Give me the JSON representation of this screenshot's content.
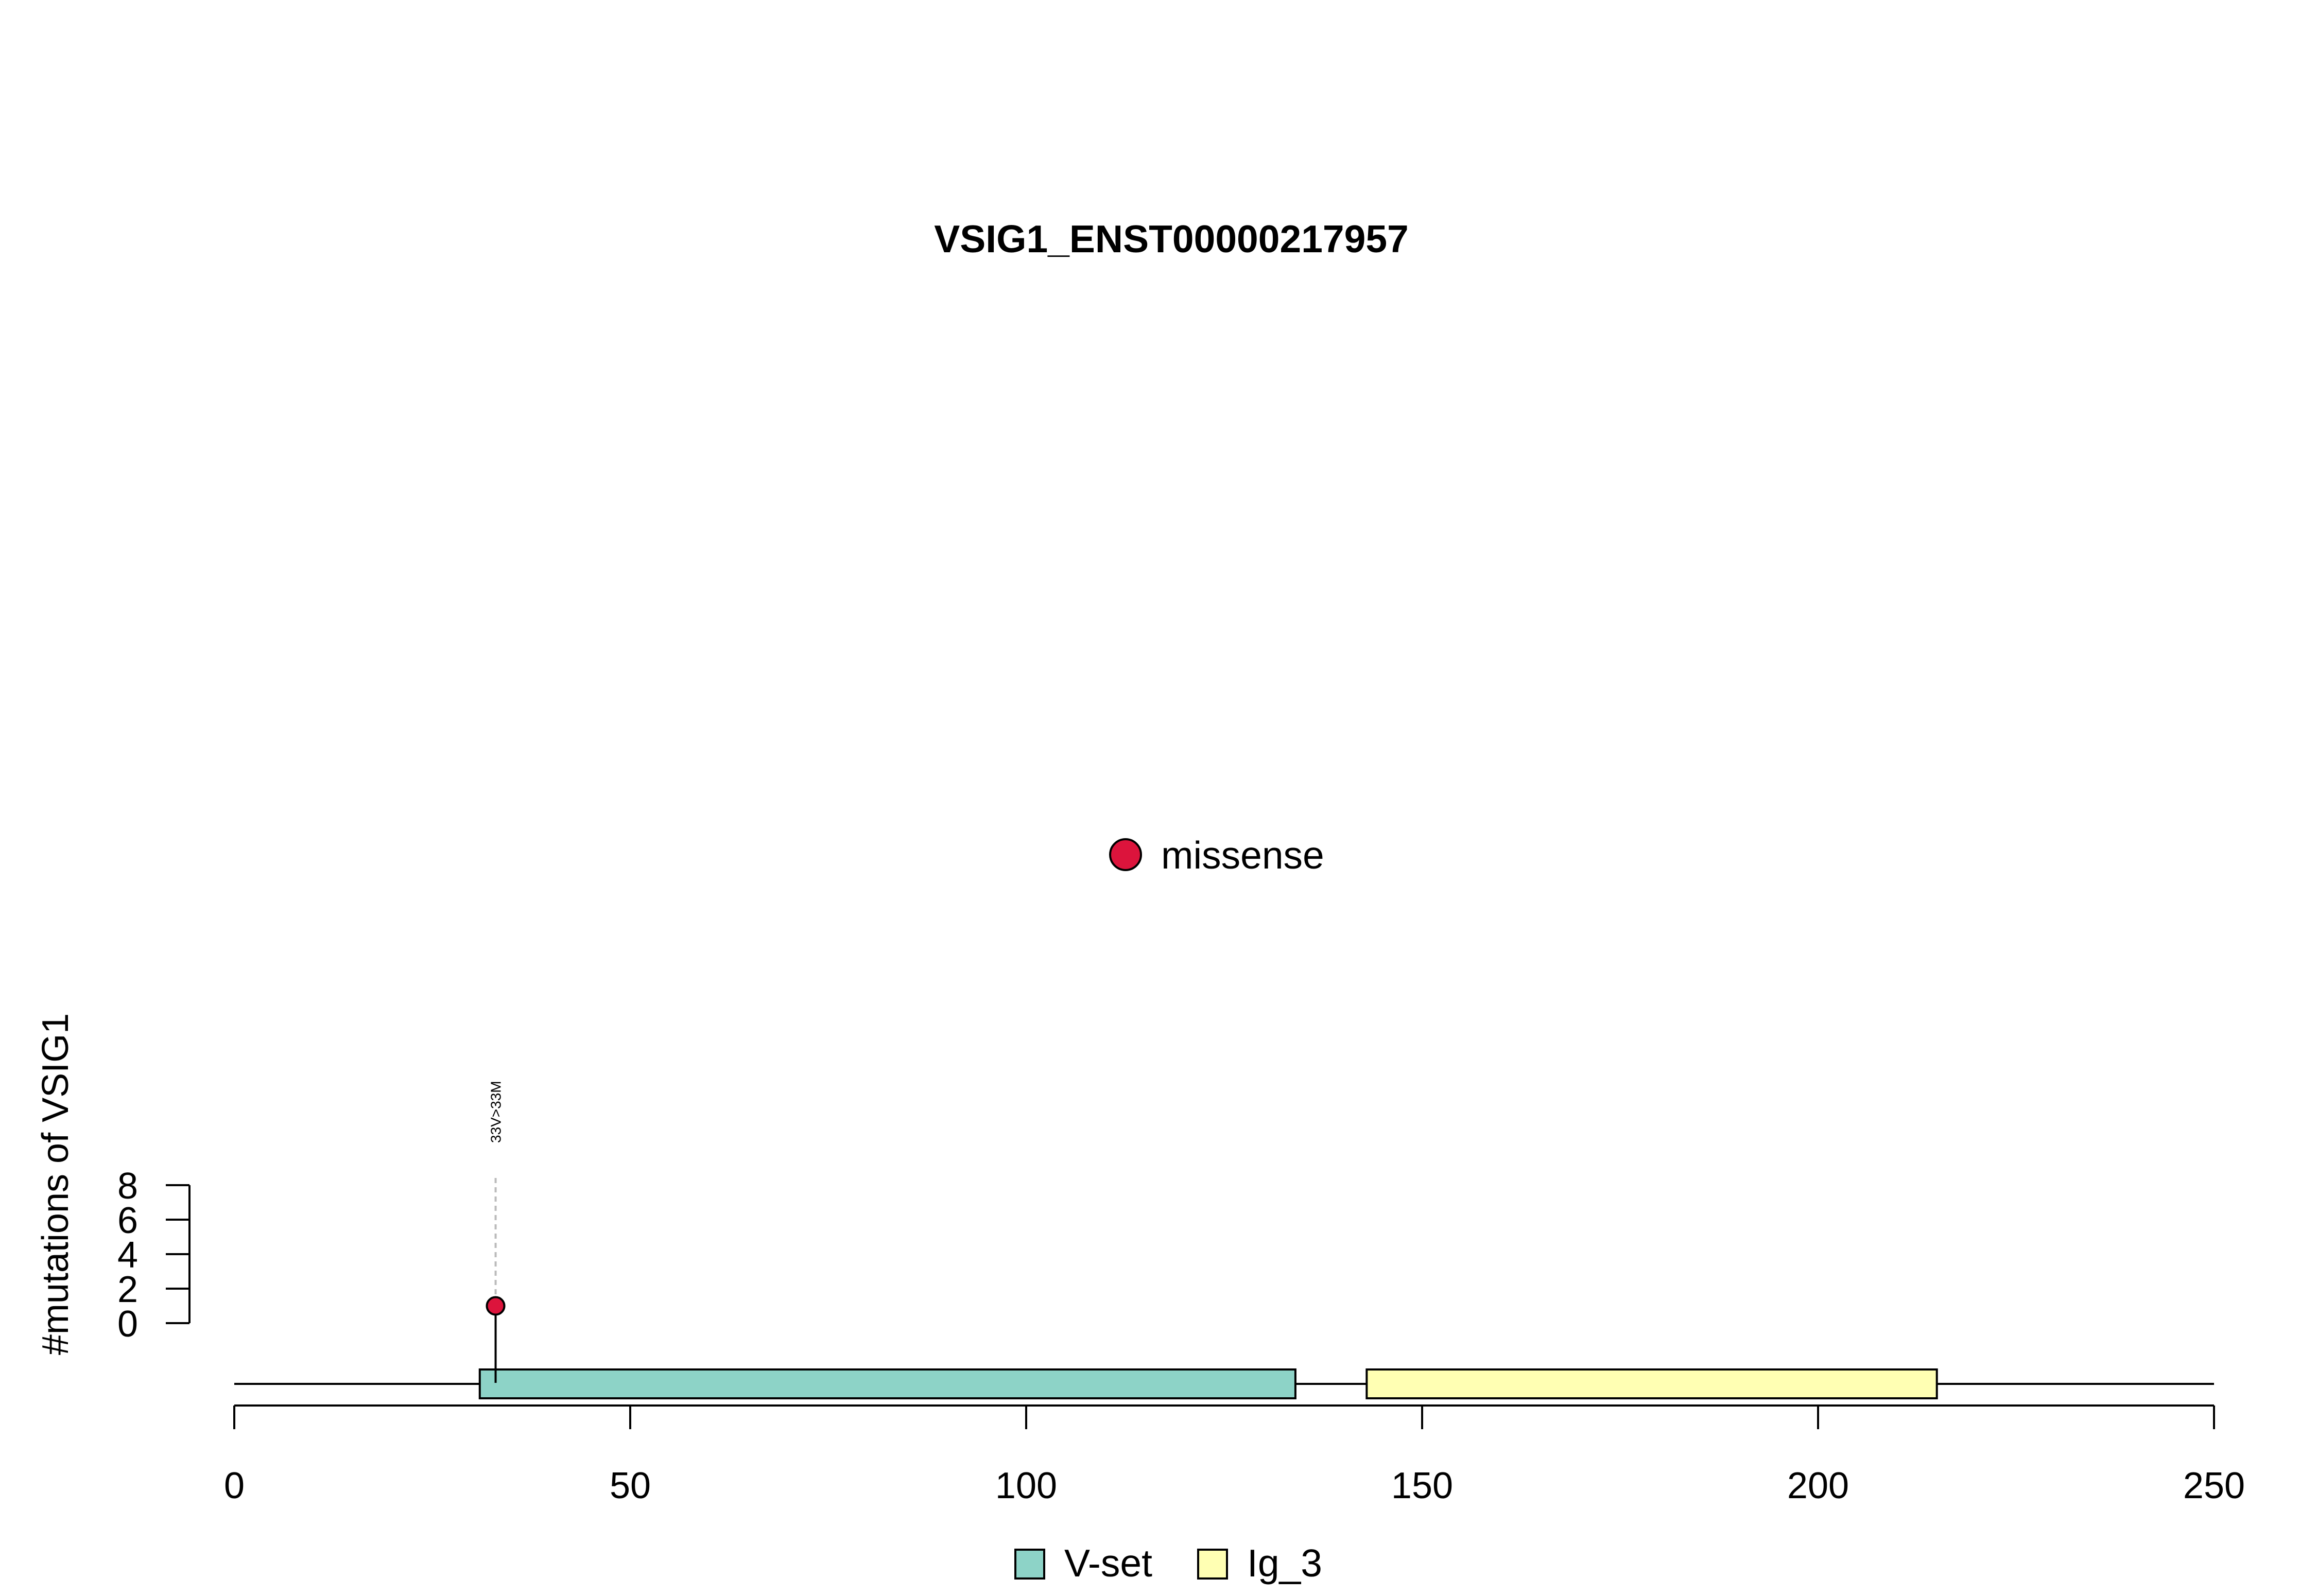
{
  "chart_data": {
    "type": "lollipop",
    "title": "VSIG1_ENST00000217957",
    "ylabel": "#mutations of VSIG1",
    "xlim": [
      0,
      250
    ],
    "x_ticks": [
      0,
      50,
      100,
      150,
      200,
      250
    ],
    "ylim": [
      0,
      8
    ],
    "y_ticks": [
      0,
      2,
      4,
      6,
      8
    ],
    "protein_length": 250,
    "domains": [
      {
        "name": "V-set",
        "start": 31,
        "end": 134,
        "color": "#8DD3C7"
      },
      {
        "name": "Ig_3",
        "start": 143,
        "end": 215,
        "color": "#FFFFB3"
      }
    ],
    "mutations": [
      {
        "position": 33,
        "count": 1,
        "label": "33V>33M",
        "type": "missense"
      }
    ],
    "mutation_types": [
      {
        "name": "missense",
        "color": "#DC143C"
      }
    ]
  }
}
